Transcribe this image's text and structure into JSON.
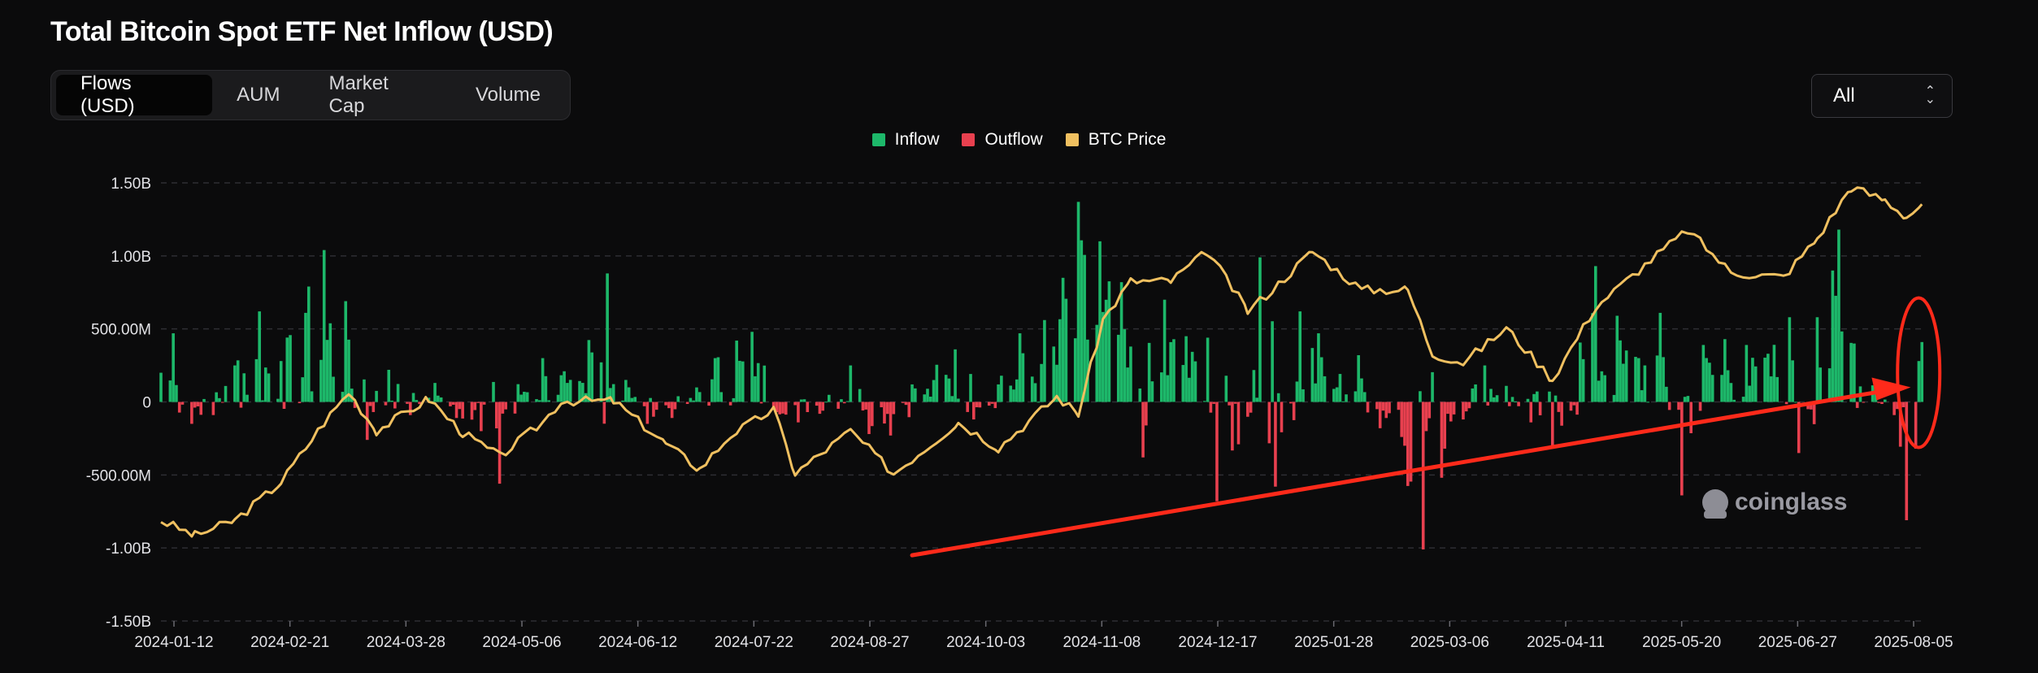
{
  "header": {
    "title": "Total Bitcoin Spot ETF Net Inflow (USD)"
  },
  "tabs": [
    {
      "label": "Flows (USD)",
      "active": true
    },
    {
      "label": "AUM",
      "active": false
    },
    {
      "label": "Market Cap",
      "active": false
    },
    {
      "label": "Volume",
      "active": false
    }
  ],
  "range_select": {
    "value": "All"
  },
  "watermark": {
    "text": "coinglass",
    "icon": "coinglass-logo-icon"
  },
  "colors": {
    "inflow": "#1db86a",
    "outflow": "#e8404f",
    "btc_price": "#f0c060",
    "annotation": "#ff2a1a"
  },
  "chart_data": {
    "type": "bar",
    "title": "Total Bitcoin Spot ETF Net Inflow (USD)",
    "xlabel": "",
    "ylabel": "",
    "legend": [
      "Inflow",
      "Outflow",
      "BTC Price"
    ],
    "legend_position": "top-center",
    "grid": true,
    "x_tick_labels": [
      "2024-01-12",
      "2024-02-21",
      "2024-03-28",
      "2024-05-06",
      "2024-06-12",
      "2024-07-22",
      "2024-08-27",
      "2024-10-03",
      "2024-11-08",
      "2024-12-17",
      "2025-01-28",
      "2025-03-06",
      "2025-04-11",
      "2025-05-20",
      "2025-06-27",
      "2025-08-05"
    ],
    "y_tick_labels": [
      "1.50B",
      "1.00B",
      "500.00M",
      "0",
      "-500.00M",
      "-1.00B",
      "-1.50B"
    ],
    "y_ticks": [
      1500,
      1000,
      500,
      0,
      -500,
      -1000,
      -1500
    ],
    "ylim": [
      -1500,
      1500
    ],
    "units": "USD millions",
    "flow_anchors_musd": [
      [
        "2024-01-12",
        200
      ],
      [
        "2024-01-16",
        470
      ],
      [
        "2024-01-22",
        -150
      ],
      [
        "2024-01-29",
        -90
      ],
      [
        "2024-02-05",
        250
      ],
      [
        "2024-02-13",
        620
      ],
      [
        "2024-02-20",
        280
      ],
      [
        "2024-02-28",
        610
      ],
      [
        "2024-03-05",
        1040
      ],
      [
        "2024-03-12",
        690
      ],
      [
        "2024-03-19",
        -260
      ],
      [
        "2024-03-26",
        220
      ],
      [
        "2024-04-02",
        -90
      ],
      [
        "2024-04-10",
        130
      ],
      [
        "2024-04-17",
        -110
      ],
      [
        "2024-04-25",
        -200
      ],
      [
        "2024-05-01",
        -560
      ],
      [
        "2024-05-08",
        50
      ],
      [
        "2024-05-15",
        300
      ],
      [
        "2024-05-22",
        210
      ],
      [
        "2024-05-29",
        60
      ],
      [
        "2024-06-05",
        880
      ],
      [
        "2024-06-12",
        100
      ],
      [
        "2024-06-18",
        -150
      ],
      [
        "2024-06-26",
        -110
      ],
      [
        "2024-07-03",
        10
      ],
      [
        "2024-07-10",
        300
      ],
      [
        "2024-07-17",
        420
      ],
      [
        "2024-07-22",
        480
      ],
      [
        "2024-07-30",
        -70
      ],
      [
        "2024-08-06",
        -140
      ],
      [
        "2024-08-14",
        -60
      ],
      [
        "2024-08-23",
        250
      ],
      [
        "2024-08-29",
        -220
      ],
      [
        "2024-09-05",
        -230
      ],
      [
        "2024-09-12",
        120
      ],
      [
        "2024-09-19",
        150
      ],
      [
        "2024-09-26",
        360
      ],
      [
        "2024-10-02",
        -120
      ],
      [
        "2024-10-10",
        120
      ],
      [
        "2024-10-17",
        470
      ],
      [
        "2024-10-24",
        260
      ],
      [
        "2024-10-31",
        850
      ],
      [
        "2024-11-05",
        1370
      ],
      [
        "2024-11-12",
        1100
      ],
      [
        "2024-11-19",
        820
      ],
      [
        "2024-11-26",
        -380
      ],
      [
        "2024-12-03",
        700
      ],
      [
        "2024-12-10",
        450
      ],
      [
        "2024-12-17",
        440
      ],
      [
        "2024-12-20",
        -680
      ],
      [
        "2024-12-27",
        -290
      ],
      [
        "2025-01-03",
        990
      ],
      [
        "2025-01-08",
        -580
      ],
      [
        "2025-01-16",
        620
      ],
      [
        "2025-01-22",
        470
      ],
      [
        "2025-01-28",
        100
      ],
      [
        "2025-02-04",
        320
      ],
      [
        "2025-02-11",
        -180
      ],
      [
        "2025-02-18",
        -240
      ],
      [
        "2025-02-25",
        -1010
      ],
      [
        "2025-03-04",
        -320
      ],
      [
        "2025-03-10",
        -120
      ],
      [
        "2025-03-17",
        250
      ],
      [
        "2025-03-24",
        110
      ],
      [
        "2025-04-01",
        -140
      ],
      [
        "2025-04-08",
        -320
      ],
      [
        "2025-04-14",
        -60
      ],
      [
        "2025-04-22",
        930
      ],
      [
        "2025-04-29",
        590
      ],
      [
        "2025-05-06",
        300
      ],
      [
        "2025-05-13",
        610
      ],
      [
        "2025-05-20",
        -640
      ],
      [
        "2025-05-27",
        390
      ],
      [
        "2025-06-03",
        430
      ],
      [
        "2025-06-10",
        390
      ],
      [
        "2025-06-17",
        330
      ],
      [
        "2025-06-24",
        580
      ],
      [
        "2025-06-27",
        -350
      ],
      [
        "2025-07-03",
        580
      ],
      [
        "2025-07-10",
        1180
      ],
      [
        "2025-07-15",
        400
      ],
      [
        "2025-07-22",
        120
      ],
      [
        "2025-07-28",
        -90
      ],
      [
        "2025-08-01",
        -810
      ],
      [
        "2025-08-04",
        -320
      ],
      [
        "2025-08-05",
        280
      ],
      [
        "2025-08-06",
        410
      ]
    ],
    "series": [
      {
        "name": "Inflow",
        "color": "#1db86a"
      },
      {
        "name": "Outflow",
        "color": "#e8404f"
      },
      {
        "name": "BTC Price",
        "color": "#f0c060",
        "axis": "right-hidden",
        "points_usd": [
          [
            "2024-01-12",
            43000
          ],
          [
            "2024-01-23",
            39500
          ],
          [
            "2024-02-05",
            43000
          ],
          [
            "2024-02-20",
            52000
          ],
          [
            "2024-03-05",
            66000
          ],
          [
            "2024-03-13",
            73000
          ],
          [
            "2024-03-22",
            64000
          ],
          [
            "2024-04-08",
            71500
          ],
          [
            "2024-04-19",
            63500
          ],
          [
            "2024-05-01",
            58000
          ],
          [
            "2024-05-15",
            66000
          ],
          [
            "2024-05-21",
            71000
          ],
          [
            "2024-06-07",
            71000
          ],
          [
            "2024-06-24",
            61000
          ],
          [
            "2024-07-05",
            55000
          ],
          [
            "2024-07-15",
            63000
          ],
          [
            "2024-07-29",
            69000
          ],
          [
            "2024-08-05",
            54000
          ],
          [
            "2024-08-23",
            64000
          ],
          [
            "2024-09-06",
            54000
          ],
          [
            "2024-09-27",
            66000
          ],
          [
            "2024-10-10",
            60000
          ],
          [
            "2024-10-29",
            72000
          ],
          [
            "2024-11-05",
            68000
          ],
          [
            "2024-11-13",
            90000
          ],
          [
            "2024-11-22",
            99000
          ],
          [
            "2024-12-05",
            99000
          ],
          [
            "2024-12-17",
            106000
          ],
          [
            "2024-12-30",
            92000
          ],
          [
            "2025-01-07",
            97000
          ],
          [
            "2025-01-20",
            106000
          ],
          [
            "2025-02-05",
            97000
          ],
          [
            "2025-02-20",
            97000
          ],
          [
            "2025-02-28",
            82000
          ],
          [
            "2025-03-10",
            80000
          ],
          [
            "2025-03-24",
            88000
          ],
          [
            "2025-04-08",
            76000
          ],
          [
            "2025-04-22",
            93000
          ],
          [
            "2025-05-10",
            104000
          ],
          [
            "2025-05-22",
            111000
          ],
          [
            "2025-06-05",
            101000
          ],
          [
            "2025-06-22",
            100000
          ],
          [
            "2025-07-03",
            109000
          ],
          [
            "2025-07-14",
            121000
          ],
          [
            "2025-07-25",
            118000
          ],
          [
            "2025-08-01",
            114000
          ],
          [
            "2025-08-06",
            117000
          ]
        ]
      }
    ],
    "annotations": [
      {
        "type": "arrow",
        "from": [
          "2024-09-12",
          -1050
        ],
        "to": [
          "2025-08-05",
          100
        ],
        "color": "#ff2a1a"
      },
      {
        "type": "ellipse",
        "center": [
          "2025-08-06",
          100
        ],
        "color": "#ff2a1a"
      }
    ]
  }
}
